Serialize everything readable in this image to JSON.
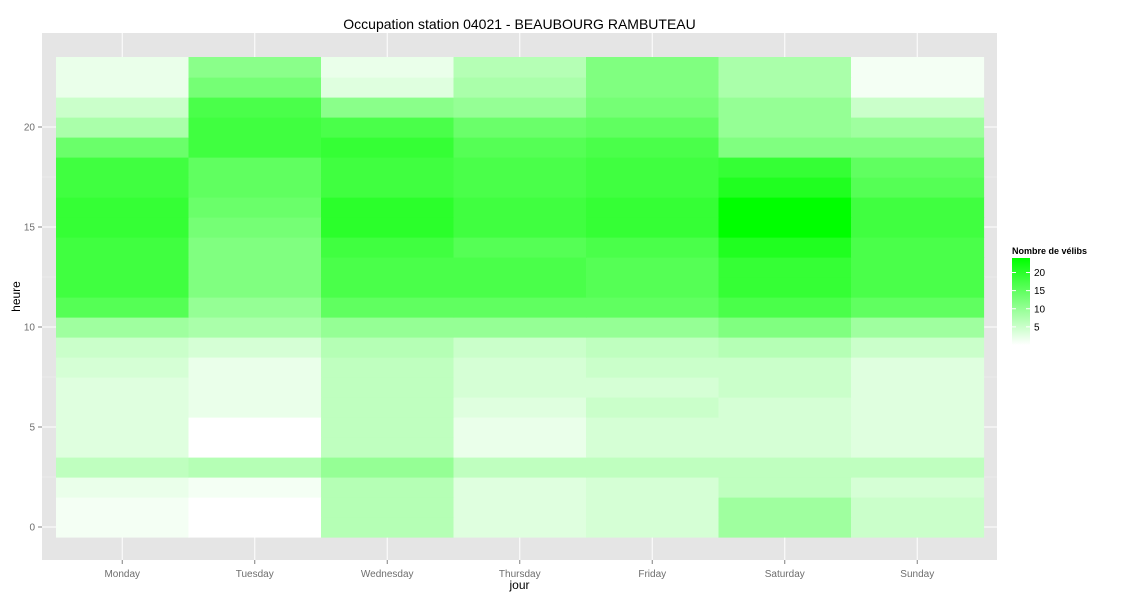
{
  "chart_data": {
    "type": "heatmap",
    "title": "Occupation station 04021 - BEAUBOURG RAMBUTEAU",
    "xlabel": "jour",
    "ylabel": "heure",
    "categories": [
      "Monday",
      "Tuesday",
      "Wednesday",
      "Thursday",
      "Friday",
      "Saturday",
      "Sunday"
    ],
    "y_ticks": [
      0,
      5,
      10,
      15,
      20
    ],
    "ylim": [
      -0.5,
      23.5
    ],
    "hours": [
      0,
      1,
      2,
      3,
      4,
      5,
      6,
      7,
      8,
      9,
      10,
      11,
      12,
      13,
      14,
      15,
      16,
      17,
      18,
      19,
      20,
      21,
      22,
      23
    ],
    "values": [
      [
        1,
        0,
        7,
        3,
        4,
        9,
        5
      ],
      [
        1,
        0,
        7,
        3,
        4,
        9,
        5
      ],
      [
        2,
        1,
        7,
        3,
        4,
        6,
        4
      ],
      [
        6,
        7,
        10,
        6,
        6,
        6,
        6
      ],
      [
        3,
        0,
        6,
        2,
        4,
        4,
        3
      ],
      [
        3,
        0,
        6,
        2,
        4,
        4,
        3
      ],
      [
        3,
        2,
        6,
        3,
        5,
        4,
        3
      ],
      [
        3,
        2,
        6,
        4,
        4,
        5,
        3
      ],
      [
        4,
        2,
        6,
        4,
        5,
        5,
        3
      ],
      [
        5,
        4,
        7,
        5,
        6,
        7,
        5
      ],
      [
        9,
        8,
        10,
        10,
        10,
        12,
        9
      ],
      [
        16,
        10,
        15,
        15,
        15,
        17,
        15
      ],
      [
        18,
        12,
        17,
        17,
        16,
        19,
        17
      ],
      [
        18,
        12,
        17,
        17,
        16,
        19,
        17
      ],
      [
        18,
        12,
        18,
        16,
        17,
        21,
        17
      ],
      [
        19,
        13,
        20,
        18,
        19,
        24,
        18
      ],
      [
        19,
        14,
        20,
        18,
        19,
        24,
        18
      ],
      [
        18,
        15,
        18,
        17,
        18,
        21,
        16
      ],
      [
        18,
        15,
        18,
        17,
        18,
        19,
        15
      ],
      [
        14,
        18,
        19,
        16,
        17,
        12,
        12
      ],
      [
        8,
        18,
        17,
        14,
        15,
        10,
        9
      ],
      [
        5,
        17,
        11,
        10,
        13,
        10,
        5
      ],
      [
        2,
        13,
        3,
        8,
        12,
        8,
        1
      ],
      [
        2,
        11,
        2,
        7,
        12,
        8,
        1
      ]
    ],
    "color_low": "#ffffff",
    "color_high": "#00ff00",
    "legend": {
      "title": "Nombre de vélibs",
      "ticks": [
        5,
        10,
        15,
        20
      ],
      "range": [
        0,
        24
      ],
      "placement": "right"
    },
    "panel_background": "#e5e5e5",
    "grid": true
  }
}
